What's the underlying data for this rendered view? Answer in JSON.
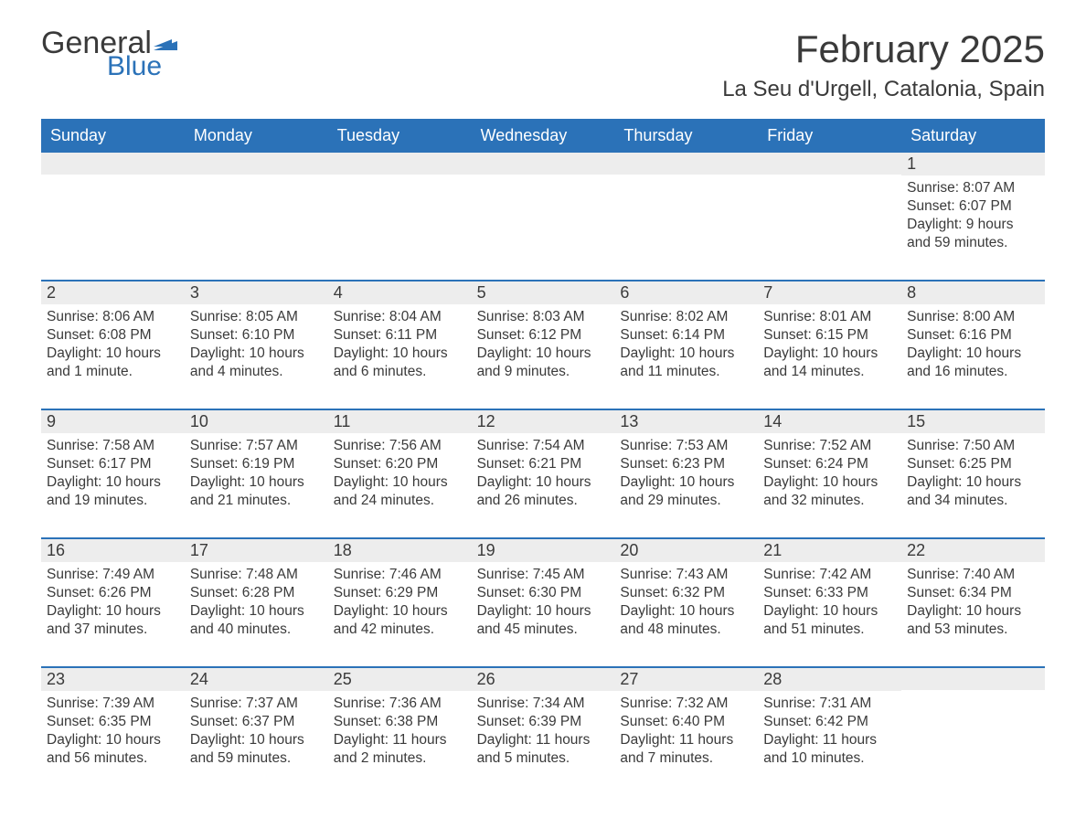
{
  "logo": {
    "general": "General",
    "blue": "Blue"
  },
  "title": "February 2025",
  "location": "La Seu d'Urgell, Catalonia, Spain",
  "colors": {
    "header_bg": "#2b72b8",
    "header_text": "#ffffff",
    "daynum_bg": "#ededed",
    "text": "#3a3a3a",
    "border": "#2b72b8",
    "page_bg": "#ffffff"
  },
  "typography": {
    "month_title_fontsize": 42,
    "location_fontsize": 24,
    "dayname_fontsize": 18,
    "daynum_fontsize": 18,
    "body_fontsize": 15.5
  },
  "layout": {
    "columns": 7,
    "rows": 5,
    "grid_template": "repeat(7, 1fr)"
  },
  "day_names": [
    "Sunday",
    "Monday",
    "Tuesday",
    "Wednesday",
    "Thursday",
    "Friday",
    "Saturday"
  ],
  "weeks": [
    [
      {
        "empty": true
      },
      {
        "empty": true
      },
      {
        "empty": true
      },
      {
        "empty": true
      },
      {
        "empty": true
      },
      {
        "empty": true
      },
      {
        "day": "1",
        "sunrise": "Sunrise: 8:07 AM",
        "sunset": "Sunset: 6:07 PM",
        "daylight": "Daylight: 9 hours and 59 minutes."
      }
    ],
    [
      {
        "day": "2",
        "sunrise": "Sunrise: 8:06 AM",
        "sunset": "Sunset: 6:08 PM",
        "daylight": "Daylight: 10 hours and 1 minute."
      },
      {
        "day": "3",
        "sunrise": "Sunrise: 8:05 AM",
        "sunset": "Sunset: 6:10 PM",
        "daylight": "Daylight: 10 hours and 4 minutes."
      },
      {
        "day": "4",
        "sunrise": "Sunrise: 8:04 AM",
        "sunset": "Sunset: 6:11 PM",
        "daylight": "Daylight: 10 hours and 6 minutes."
      },
      {
        "day": "5",
        "sunrise": "Sunrise: 8:03 AM",
        "sunset": "Sunset: 6:12 PM",
        "daylight": "Daylight: 10 hours and 9 minutes."
      },
      {
        "day": "6",
        "sunrise": "Sunrise: 8:02 AM",
        "sunset": "Sunset: 6:14 PM",
        "daylight": "Daylight: 10 hours and 11 minutes."
      },
      {
        "day": "7",
        "sunrise": "Sunrise: 8:01 AM",
        "sunset": "Sunset: 6:15 PM",
        "daylight": "Daylight: 10 hours and 14 minutes."
      },
      {
        "day": "8",
        "sunrise": "Sunrise: 8:00 AM",
        "sunset": "Sunset: 6:16 PM",
        "daylight": "Daylight: 10 hours and 16 minutes."
      }
    ],
    [
      {
        "day": "9",
        "sunrise": "Sunrise: 7:58 AM",
        "sunset": "Sunset: 6:17 PM",
        "daylight": "Daylight: 10 hours and 19 minutes."
      },
      {
        "day": "10",
        "sunrise": "Sunrise: 7:57 AM",
        "sunset": "Sunset: 6:19 PM",
        "daylight": "Daylight: 10 hours and 21 minutes."
      },
      {
        "day": "11",
        "sunrise": "Sunrise: 7:56 AM",
        "sunset": "Sunset: 6:20 PM",
        "daylight": "Daylight: 10 hours and 24 minutes."
      },
      {
        "day": "12",
        "sunrise": "Sunrise: 7:54 AM",
        "sunset": "Sunset: 6:21 PM",
        "daylight": "Daylight: 10 hours and 26 minutes."
      },
      {
        "day": "13",
        "sunrise": "Sunrise: 7:53 AM",
        "sunset": "Sunset: 6:23 PM",
        "daylight": "Daylight: 10 hours and 29 minutes."
      },
      {
        "day": "14",
        "sunrise": "Sunrise: 7:52 AM",
        "sunset": "Sunset: 6:24 PM",
        "daylight": "Daylight: 10 hours and 32 minutes."
      },
      {
        "day": "15",
        "sunrise": "Sunrise: 7:50 AM",
        "sunset": "Sunset: 6:25 PM",
        "daylight": "Daylight: 10 hours and 34 minutes."
      }
    ],
    [
      {
        "day": "16",
        "sunrise": "Sunrise: 7:49 AM",
        "sunset": "Sunset: 6:26 PM",
        "daylight": "Daylight: 10 hours and 37 minutes."
      },
      {
        "day": "17",
        "sunrise": "Sunrise: 7:48 AM",
        "sunset": "Sunset: 6:28 PM",
        "daylight": "Daylight: 10 hours and 40 minutes."
      },
      {
        "day": "18",
        "sunrise": "Sunrise: 7:46 AM",
        "sunset": "Sunset: 6:29 PM",
        "daylight": "Daylight: 10 hours and 42 minutes."
      },
      {
        "day": "19",
        "sunrise": "Sunrise: 7:45 AM",
        "sunset": "Sunset: 6:30 PM",
        "daylight": "Daylight: 10 hours and 45 minutes."
      },
      {
        "day": "20",
        "sunrise": "Sunrise: 7:43 AM",
        "sunset": "Sunset: 6:32 PM",
        "daylight": "Daylight: 10 hours and 48 minutes."
      },
      {
        "day": "21",
        "sunrise": "Sunrise: 7:42 AM",
        "sunset": "Sunset: 6:33 PM",
        "daylight": "Daylight: 10 hours and 51 minutes."
      },
      {
        "day": "22",
        "sunrise": "Sunrise: 7:40 AM",
        "sunset": "Sunset: 6:34 PM",
        "daylight": "Daylight: 10 hours and 53 minutes."
      }
    ],
    [
      {
        "day": "23",
        "sunrise": "Sunrise: 7:39 AM",
        "sunset": "Sunset: 6:35 PM",
        "daylight": "Daylight: 10 hours and 56 minutes."
      },
      {
        "day": "24",
        "sunrise": "Sunrise: 7:37 AM",
        "sunset": "Sunset: 6:37 PM",
        "daylight": "Daylight: 10 hours and 59 minutes."
      },
      {
        "day": "25",
        "sunrise": "Sunrise: 7:36 AM",
        "sunset": "Sunset: 6:38 PM",
        "daylight": "Daylight: 11 hours and 2 minutes."
      },
      {
        "day": "26",
        "sunrise": "Sunrise: 7:34 AM",
        "sunset": "Sunset: 6:39 PM",
        "daylight": "Daylight: 11 hours and 5 minutes."
      },
      {
        "day": "27",
        "sunrise": "Sunrise: 7:32 AM",
        "sunset": "Sunset: 6:40 PM",
        "daylight": "Daylight: 11 hours and 7 minutes."
      },
      {
        "day": "28",
        "sunrise": "Sunrise: 7:31 AM",
        "sunset": "Sunset: 6:42 PM",
        "daylight": "Daylight: 11 hours and 10 minutes."
      },
      {
        "empty": true
      }
    ]
  ]
}
